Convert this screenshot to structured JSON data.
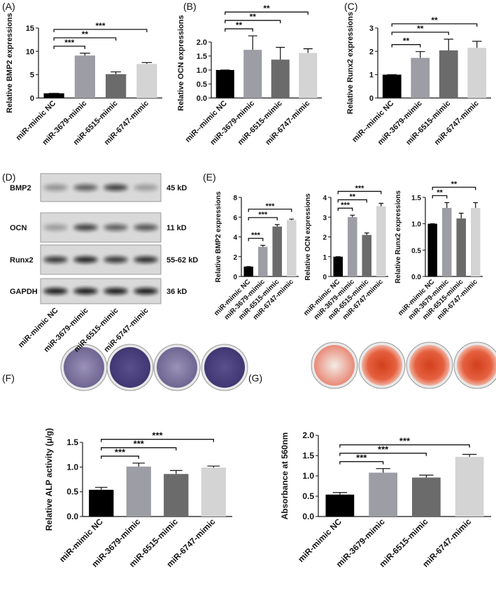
{
  "chart_data": [
    {
      "type": "bar",
      "label": "(A)",
      "y_label": "Relative BMP2 expressions",
      "categories": [
        "miR-mimic NC",
        "miR-3679-mimic",
        "miR-6515-mimic",
        "miR-6747-mimic"
      ],
      "values": [
        1,
        9.1,
        5.1,
        7.3
      ],
      "errors": [
        0,
        0.5,
        0.5,
        0.3
      ],
      "colors": [
        "#000000",
        "#9d9da6",
        "#6b6b6b",
        "#d4d4d4"
      ],
      "ylim": [
        0,
        15
      ],
      "yticks": [
        0,
        5,
        10,
        15
      ],
      "significance": [
        {
          "from": 0,
          "to": 1,
          "label": "***"
        },
        {
          "from": 0,
          "to": 2,
          "label": "**"
        },
        {
          "from": 0,
          "to": 3,
          "label": "***"
        }
      ]
    },
    {
      "type": "bar",
      "label": "(B)",
      "y_label": "Relative OCN expressions",
      "categories": [
        "miR--mimic NC",
        "miR-3679-mimic",
        "miR-6515-mimic",
        "miR-6747-mimic"
      ],
      "values": [
        1.0,
        1.72,
        1.37,
        1.61
      ],
      "errors": [
        0,
        0.5,
        0.44,
        0.15
      ],
      "colors": [
        "#000000",
        "#9d9da6",
        "#6b6b6b",
        "#d4d4d4"
      ],
      "ylim": [
        0,
        2.5
      ],
      "yticks": [
        {
          "value": 0,
          "label": "0.0"
        },
        {
          "value": 0.5,
          "label": "0.5"
        },
        {
          "value": 1,
          "label": "1.0"
        },
        {
          "value": 1.5,
          "label": "1.5"
        },
        {
          "value": 2,
          "label": "2.0"
        }
      ],
      "significance": [
        {
          "from": 0,
          "to": 1,
          "label": "**"
        },
        {
          "from": 0,
          "to": 2,
          "label": "**"
        },
        {
          "from": 0,
          "to": 3,
          "label": "**"
        }
      ]
    },
    {
      "type": "bar",
      "label": "(C)",
      "y_label": "Relative Runx2 expressions",
      "categories": [
        "miR--mimic NC",
        "miR-3679-mimic",
        "miR-6515-mimic",
        "miR-6747-mimic"
      ],
      "values": [
        1,
        1.72,
        2.04,
        2.15
      ],
      "errors": [
        0,
        0.27,
        0.48,
        0.28
      ],
      "colors": [
        "#000000",
        "#9d9da6",
        "#6b6b6b",
        "#d4d4d4"
      ],
      "ylim": [
        0,
        3
      ],
      "yticks": [
        0,
        1,
        2,
        3
      ],
      "significance": [
        {
          "from": 0,
          "to": 1,
          "label": "**"
        },
        {
          "from": 0,
          "to": 2,
          "label": "**"
        },
        {
          "from": 0,
          "to": 3,
          "label": "**"
        }
      ]
    },
    {
      "type": "bar",
      "label": "(E)",
      "y_label": "Relative BMP2 expressions",
      "categories": [
        "miR-mimic NC",
        "miR-3679-mimic",
        "miR-6515-mimic",
        "miR-6747-mimic"
      ],
      "values": [
        1,
        3.0,
        5.05,
        5.7
      ],
      "errors": [
        0,
        0.15,
        0.2,
        0.1
      ],
      "colors": [
        "#000000",
        "#9d9da6",
        "#6b6b6b",
        "#d4d4d4"
      ],
      "ylim": [
        0,
        8
      ],
      "yticks": [
        0,
        2,
        4,
        6,
        8
      ],
      "significance": [
        {
          "from": 0,
          "to": 1,
          "label": "***"
        },
        {
          "from": 0,
          "to": 2,
          "label": "***"
        },
        {
          "from": 0,
          "to": 3,
          "label": "***"
        }
      ]
    },
    {
      "type": "bar",
      "y_label": "Relative OCN expressions",
      "categories": [
        "miR-mimic NC",
        "miR-3679-mimic",
        "miR-6515-mimic",
        "miR-6747-mimic"
      ],
      "values": [
        1,
        3.0,
        2.1,
        3.55
      ],
      "errors": [
        0,
        0.1,
        0.1,
        0.15
      ],
      "colors": [
        "#000000",
        "#9d9da6",
        "#6b6b6b",
        "#d4d4d4"
      ],
      "ylim": [
        0,
        4
      ],
      "yticks": [
        0,
        1,
        2,
        3,
        4
      ],
      "significance": [
        {
          "from": 0,
          "to": 1,
          "label": "***"
        },
        {
          "from": 0,
          "to": 2,
          "label": "**"
        },
        {
          "from": 0,
          "to": 3,
          "label": "***"
        }
      ]
    },
    {
      "type": "bar",
      "y_label": "Relative Runx2 expressions",
      "categories": [
        "miR-mimic NC",
        "miR-3679-mimic",
        "miR-6515-mimic",
        "miR-6747-mimic"
      ],
      "values": [
        1.0,
        1.3,
        1.1,
        1.3
      ],
      "errors": [
        0,
        0.1,
        0.1,
        0.1
      ],
      "colors": [
        "#000000",
        "#9d9da6",
        "#6b6b6b",
        "#d4d4d4"
      ],
      "ylim": [
        0,
        1.5
      ],
      "yticks": [
        {
          "value": 0,
          "label": "0.0"
        },
        {
          "value": 0.5,
          "label": "0.5"
        },
        {
          "value": 1,
          "label": "1.0"
        },
        {
          "value": 1.5,
          "label": "1.5"
        }
      ],
      "significance": [
        {
          "from": 0,
          "to": 1,
          "label": "**"
        },
        {
          "from": 0,
          "to": 3,
          "label": "**"
        }
      ]
    },
    {
      "type": "bar",
      "label": "(F)",
      "y_label": "Relative ALP activity (μ/g)",
      "categories": [
        "miR-mimic NC",
        "miR-3679-mimic",
        "miR-6515-mimic",
        "miR-6747-mimic"
      ],
      "values": [
        0.54,
        1.01,
        0.86,
        0.99
      ],
      "errors": [
        0.05,
        0.07,
        0.07,
        0.03
      ],
      "colors": [
        "#000000",
        "#9d9da6",
        "#6b6b6b",
        "#d4d4d4"
      ],
      "ylim": [
        0,
        1.5
      ],
      "yticks": [
        {
          "value": 0,
          "label": "0.0"
        },
        {
          "value": 0.5,
          "label": "0.5"
        },
        {
          "value": 1,
          "label": "1.0"
        },
        {
          "value": 1.5,
          "label": "1.5"
        }
      ],
      "significance": [
        {
          "from": 0,
          "to": 1,
          "label": "***"
        },
        {
          "from": 0,
          "to": 2,
          "label": "***"
        },
        {
          "from": 0,
          "to": 3,
          "label": "***"
        }
      ]
    },
    {
      "type": "bar",
      "label": "(G)",
      "y_label": "Absorbance at 560nm",
      "categories": [
        "miR-mimic NC",
        "miR-3679-mimic",
        "miR-6515-mimic",
        "miR-6747-mimic"
      ],
      "values": [
        0.54,
        1.08,
        0.96,
        1.47
      ],
      "errors": [
        0.05,
        0.1,
        0.06,
        0.06
      ],
      "colors": [
        "#000000",
        "#9d9da6",
        "#6b6b6b",
        "#d4d4d4"
      ],
      "ylim": [
        0,
        2
      ],
      "yticks": [
        {
          "value": 0,
          "label": "0.0"
        },
        {
          "value": 0.5,
          "label": "0.5"
        },
        {
          "value": 1,
          "label": "1.0"
        },
        {
          "value": 1.5,
          "label": "1.5"
        },
        {
          "value": 2,
          "label": "2.0"
        }
      ],
      "significance": [
        {
          "from": 0,
          "to": 1,
          "label": "***"
        },
        {
          "from": 0,
          "to": 2,
          "label": "***"
        },
        {
          "from": 0,
          "to": 3,
          "label": "***"
        }
      ]
    }
  ],
  "blot": {
    "label": "(D)",
    "bands": [
      {
        "name": "BMP2",
        "size": "45 kD"
      },
      {
        "name": "OCN",
        "size": "11 kD"
      },
      {
        "name": "Runx2",
        "size": "55-62 kD"
      },
      {
        "name": "GAPDH",
        "size": "36 kD"
      }
    ],
    "categories": [
      "miR-mimic NC",
      "miR-3679-mimic",
      "miR-6515-mimic",
      "miR-6747-mimic"
    ]
  }
}
